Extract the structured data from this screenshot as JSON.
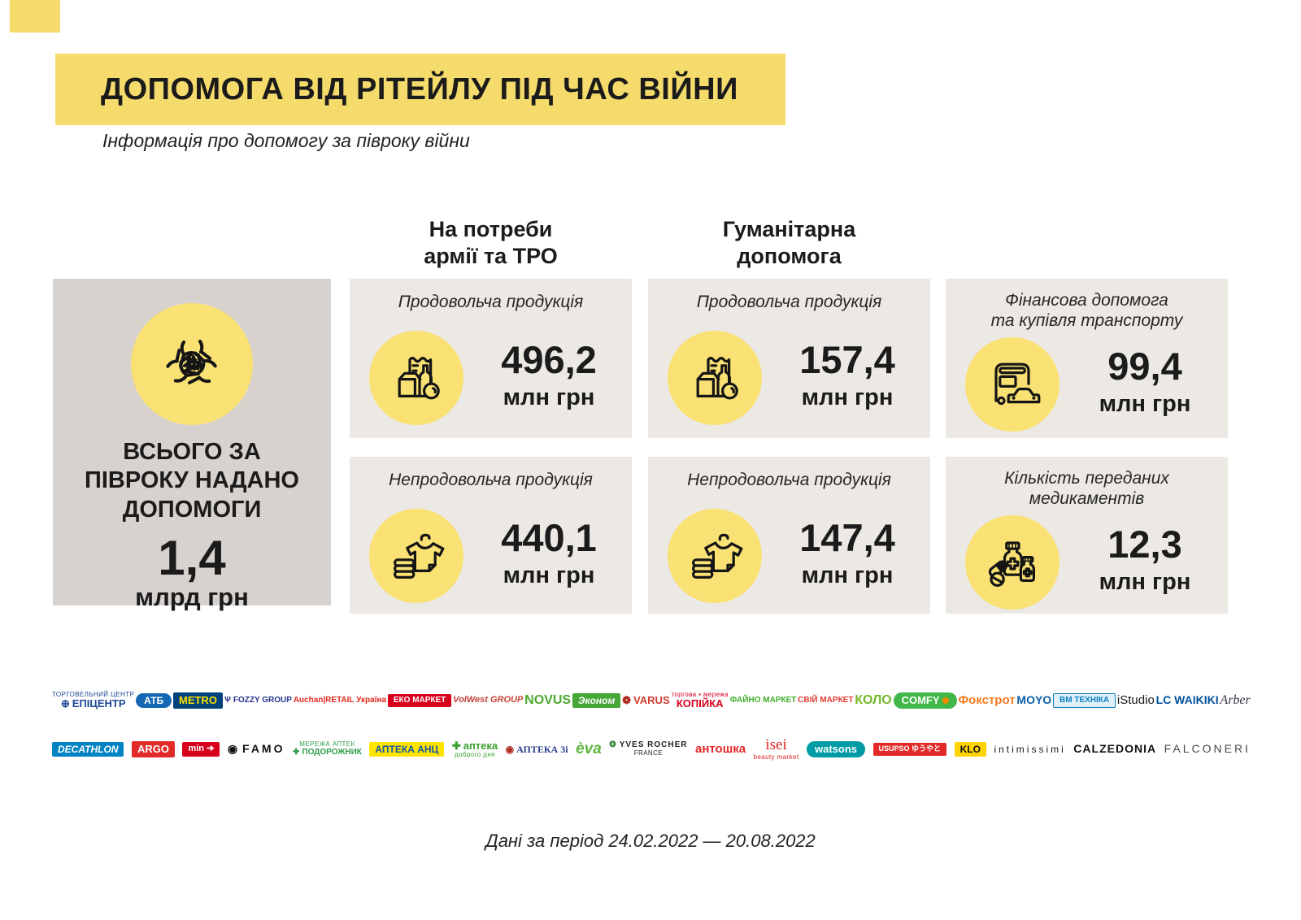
{
  "header": {
    "title": "ДОПОМОГА ВІД РІТЕЙЛУ ПІД ЧАС ВІЙНИ",
    "subtitle": "Інформація про допомогу за півроку війни"
  },
  "columns": {
    "army": "На потреби\nармії та ТРО",
    "humanitarian": "Гуманітарна\nдопомога"
  },
  "summary": {
    "label": "ВСЬОГО ЗА\nПІВРОКУ НАДАНО\nДОПОМОГИ",
    "value": "1,4",
    "unit": "млрд грн",
    "icon": "hands-together-icon"
  },
  "cards": [
    {
      "label": "Продовольча продукція",
      "value": "496,2",
      "unit": "млн грн",
      "icon": "groceries-icon"
    },
    {
      "label": "Продовольча продукція",
      "value": "157,4",
      "unit": "млн грн",
      "icon": "groceries-icon"
    },
    {
      "label": "Фінансова допомога\nта купівля транспорту",
      "value": "99,4",
      "unit": "млн грн",
      "icon": "bus-car-icon"
    },
    {
      "label": "Непродовольча продукція",
      "value": "440,1",
      "unit": "млн грн",
      "icon": "clothes-icon"
    },
    {
      "label": "Непродовольча продукція",
      "value": "147,4",
      "unit": "млн грн",
      "icon": "clothes-icon"
    },
    {
      "label": "Кількість переданих\nмедикаментів",
      "value": "12,3",
      "unit": "млн грн",
      "icon": "medicine-icon"
    }
  ],
  "chart_data": {
    "type": "table",
    "title": "ДОПОМОГА ВІД РІТЕЙЛУ ПІД ЧАС ВІЙНИ",
    "subtitle": "Інформація про допомогу за півроку війни",
    "total": {
      "label": "Всього за півроку надано допомоги",
      "value": 1.4,
      "unit": "млрд грн"
    },
    "groups": [
      {
        "group": "На потреби армії та ТРО",
        "items": [
          {
            "label": "Продовольча продукція",
            "value": 496.2,
            "unit": "млн грн"
          },
          {
            "label": "Непродовольча продукція",
            "value": 440.1,
            "unit": "млн грн"
          }
        ]
      },
      {
        "group": "Гуманітарна допомога",
        "items": [
          {
            "label": "Продовольча продукція",
            "value": 157.4,
            "unit": "млн грн"
          },
          {
            "label": "Непродовольча продукція",
            "value": 147.4,
            "unit": "млн грн"
          }
        ]
      },
      {
        "group": "",
        "items": [
          {
            "label": "Фінансова допомога та купівля транспорту",
            "value": 99.4,
            "unit": "млн грн"
          },
          {
            "label": "Кількість переданих медикаментів",
            "value": 12.3,
            "unit": "млн грн"
          }
        ]
      }
    ],
    "period": "24.02.2022 — 20.08.2022"
  },
  "colors": {
    "banner_yellow": "#F5DB6B",
    "icon_circle_yellow": "#F9E173",
    "card_background": "#ECE8E3",
    "summary_background": "#D8D2CE"
  },
  "logos": {
    "row1": [
      {
        "id": "epicentr",
        "label": "ЕПІЦЕНТР",
        "fg": "#1b4796",
        "glyph": "⊕",
        "glyphColor": "#1b4796",
        "fs": 13,
        "bold": true,
        "top": "ТОРГОВЕЛЬНИЙ ЦЕНТР"
      },
      {
        "id": "atb",
        "label": "АТБ",
        "fg": "#ffffff",
        "bg": "#1467b3",
        "fs": 12,
        "bold": true,
        "pill": true
      },
      {
        "id": "metro",
        "label": "METRO",
        "fg": "#ffe000",
        "bg": "#00437a",
        "fs": 13,
        "bold": true
      },
      {
        "id": "fozzy",
        "label": "FOZZY GROUP",
        "fg": "#27348b",
        "glyph": "Ѱ",
        "glyphColor": "#27348b",
        "fs": 10,
        "bold": true
      },
      {
        "id": "auchan",
        "label": "Auchan|RETAIL Україна",
        "fg": "#e0281e",
        "fs": 10,
        "bold": true
      },
      {
        "id": "eko-market",
        "label": "ЕКО МАРКЕТ",
        "fg": "#ffffff",
        "bg": "#d6001c",
        "fs": 10,
        "bold": true
      },
      {
        "id": "volwest",
        "label": "VolWest GROUP",
        "fg": "#c63f38",
        "fs": 11,
        "bold": true,
        "italic": true
      },
      {
        "id": "novus",
        "label": "NOVUS",
        "fg": "#4aa82e",
        "fs": 16,
        "bold": true
      },
      {
        "id": "ekonom",
        "label": "Эконом",
        "fg": "#ffffff",
        "bg": "#45a735",
        "fs": 12,
        "bold": true,
        "italic": true
      },
      {
        "id": "varus",
        "label": "VARUS",
        "fg": "#d23a2e",
        "glyph": "❁",
        "glyphColor": "#b02a20",
        "fs": 13,
        "bold": true
      },
      {
        "id": "kopiyka",
        "label": "КОПІЙКА",
        "fg": "#d6001c",
        "fs": 13,
        "bold": true,
        "top": "торгова ▪ мережа"
      },
      {
        "id": "fayno-market",
        "label": "ФАЙНО МАРКЕТ",
        "fg": "#3fae2a",
        "fs": 10,
        "bold": true
      },
      {
        "id": "sviy-market",
        "label": "СВІЙ МАРКЕТ",
        "fg": "#e03b30",
        "fs": 10,
        "bold": true
      },
      {
        "id": "kolo",
        "label": "КОЛО",
        "fg": "#76b82a",
        "fs": 16,
        "bold": true
      },
      {
        "id": "comfy",
        "label": "COMFY",
        "fg": "#ffffff",
        "bg": "#41b649",
        "fs": 13,
        "bold": true,
        "pill": true,
        "dot": "#f18a00"
      },
      {
        "id": "foxtrot",
        "label": "Фокстрот",
        "fg": "#f47b20",
        "fs": 15,
        "bold": true
      },
      {
        "id": "moyo",
        "label": "MOYO",
        "fg": "#0b5ea8",
        "fs": 14,
        "bold": true
      },
      {
        "id": "vm-tehnika",
        "label": "ВМ ТЕХНІКА",
        "fg": "#0d7fc0",
        "bg": "#dff0fa",
        "border": "#0d7fc0",
        "fs": 10,
        "bold": true
      },
      {
        "id": "istudio",
        "label": "iStudio",
        "fg": "#1a1a1a",
        "fs": 15
      },
      {
        "id": "lc-waikiki",
        "label": "LC WAIKIKI",
        "fg": "#00509d",
        "fs": 14,
        "bold": true
      },
      {
        "id": "arber",
        "label": "Arber",
        "fg": "#333348",
        "fs": 16,
        "italic": true,
        "serif": true
      }
    ],
    "row2": [
      {
        "id": "decathlon",
        "label": "DECATHLON",
        "fg": "#ffffff",
        "bg": "#0082c3",
        "fs": 12,
        "bold": true,
        "italic": true
      },
      {
        "id": "argo",
        "label": "ARGO",
        "fg": "#ffffff",
        "bg": "#e22a28",
        "fs": 13,
        "bold": true
      },
      {
        "id": "min",
        "label": "min ➔",
        "fg": "#ffffff",
        "bg": "#d6001c",
        "fs": 11,
        "bold": true
      },
      {
        "id": "famo",
        "label": "FAMO",
        "fg": "#111111",
        "glyph": "◉",
        "glyphColor": "#111111",
        "fs": 14,
        "bold": true,
        "ls": 3
      },
      {
        "id": "podorozhnyk",
        "label": "ПОДОРОЖНИК",
        "fg": "#2f9e49",
        "glyph": "✚",
        "glyphColor": "#2f9e49",
        "fs": 10,
        "bold": true,
        "top": "МЕРЕЖА АПТЕК"
      },
      {
        "id": "apteka-anc",
        "label": "АПТЕКА АНЦ",
        "fg": "#1356a5",
        "bg": "#ffe400",
        "fs": 12,
        "bold": true
      },
      {
        "id": "apteka-dobrogo-dnya",
        "label": "аптека",
        "fg": "#3aa02c",
        "glyph": "✚",
        "glyphColor": "#3aa02c",
        "fs": 13,
        "bold": true,
        "bottom": "доброго дня"
      },
      {
        "id": "apteka-3i",
        "label": "АПТЕКА 3і",
        "fg": "#2b3c8f",
        "glyph": "◉",
        "glyphColor": "#b02a20",
        "fs": 12,
        "bold": true,
        "serif": true
      },
      {
        "id": "eva",
        "label": "èva",
        "fg": "#62b63e",
        "fs": 19,
        "bold": true,
        "italic": true
      },
      {
        "id": "yves-rocher",
        "label": "YVES ROCHER",
        "fg": "#222222",
        "glyph": "❂",
        "glyphColor": "#2e7d32",
        "fs": 10,
        "bold": true,
        "ls": 1,
        "bottom": "FRANCE"
      },
      {
        "id": "antoshka",
        "label": "антошка",
        "fg": "#e22a28",
        "fs": 15,
        "bold": true
      },
      {
        "id": "isei",
        "label": "isei",
        "fg": "#e02020",
        "fs": 19,
        "serif": true,
        "bottom": "beauty market"
      },
      {
        "id": "watsons",
        "label": "watsons",
        "fg": "#ffffff",
        "bg": "#009ba4",
        "fs": 13,
        "bold": true,
        "pill": true
      },
      {
        "id": "usupso",
        "label": "USUPSO ゆうやと",
        "fg": "#ffffff",
        "bg": "#e22a28",
        "fs": 9,
        "bold": true
      },
      {
        "id": "klo",
        "label": "KLO",
        "fg": "#111111",
        "bg": "#ffd400",
        "fs": 12,
        "bold": true
      },
      {
        "id": "intimissimi",
        "label": "intimissimi",
        "fg": "#1a1a1a",
        "fs": 12,
        "ls": 3
      },
      {
        "id": "calzedonia",
        "label": "CALZEDONIA",
        "fg": "#111111",
        "fs": 14,
        "bold": true,
        "ls": 1
      },
      {
        "id": "falconeri",
        "label": "FALCONERI",
        "fg": "#4a4a4a",
        "fs": 14,
        "ls": 3
      }
    ]
  },
  "footer": {
    "period": "Дані за період 24.02.2022 — 20.08.2022"
  }
}
